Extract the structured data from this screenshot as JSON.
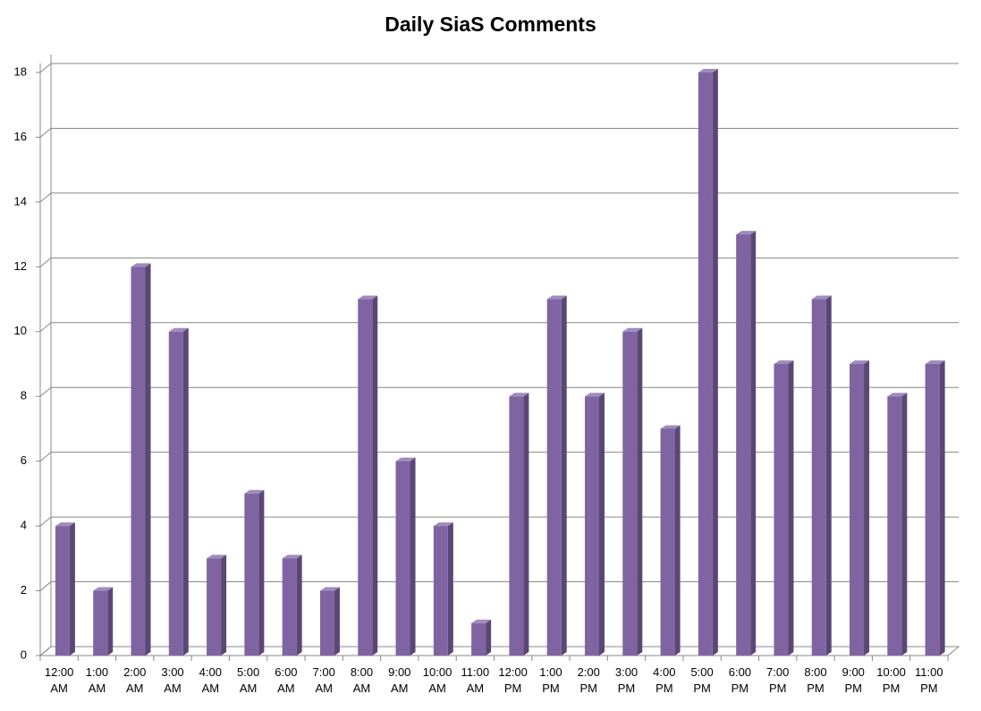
{
  "chart_data": {
    "type": "bar3d",
    "title": "Daily SiaS Comments",
    "categories": [
      "12:00 AM",
      "1:00 AM",
      "2:00 AM",
      "3:00 AM",
      "4:00 AM",
      "5:00 AM",
      "6:00 AM",
      "7:00 AM",
      "8:00 AM",
      "9:00 AM",
      "10:00 AM",
      "11:00 AM",
      "12:00 PM",
      "1:00 PM",
      "2:00 PM",
      "3:00 PM",
      "4:00 PM",
      "5:00 PM",
      "6:00 PM",
      "7:00 PM",
      "8:00 PM",
      "9:00 PM",
      "10:00 PM",
      "11:00 PM"
    ],
    "values": [
      4,
      2,
      12,
      10,
      3,
      5,
      3,
      2,
      11,
      6,
      4,
      1,
      8,
      11,
      8,
      10,
      7,
      18,
      13,
      9,
      11,
      9,
      8,
      9
    ],
    "color": "#8064a2",
    "ylim": [
      0,
      18
    ],
    "yticks": [
      0,
      2,
      4,
      6,
      8,
      10,
      12,
      14,
      16,
      18
    ],
    "grid": true
  }
}
